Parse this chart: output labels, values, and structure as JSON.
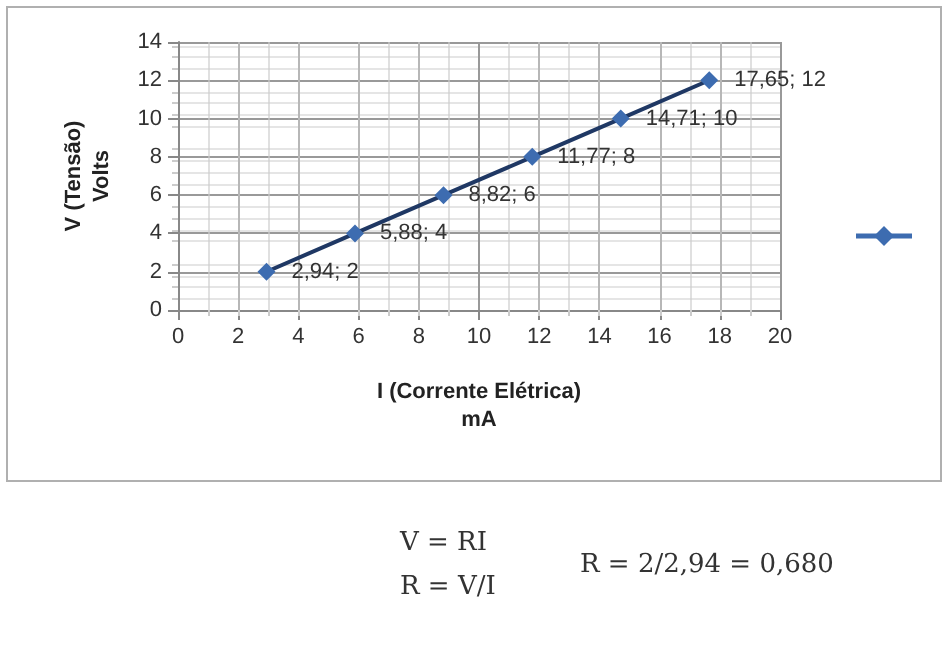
{
  "chart_data": {
    "type": "line",
    "xlabel": "I (Corrente Elétrica)\nmA",
    "ylabel": "V (Tensão)\nVolts",
    "x": [
      2.94,
      5.88,
      8.82,
      11.77,
      14.71,
      17.65
    ],
    "series": [
      {
        "color": "#3d6cb0",
        "values": [
          2,
          4,
          6,
          8,
          10,
          12
        ],
        "value_labels": [
          "2,94; 2",
          "5,88; 4",
          "8,82; 6",
          "11,77; 8",
          "14,71; 10",
          "17,65; 12"
        ]
      }
    ],
    "xlim": [
      0,
      20
    ],
    "xticks": [
      0,
      2,
      4,
      6,
      8,
      10,
      12,
      14,
      16,
      18,
      20
    ],
    "ylim": [
      0,
      14
    ],
    "yticks": [
      0,
      2,
      4,
      6,
      8,
      10,
      12,
      14
    ],
    "grid": true,
    "marker": "diamond",
    "line_style": "solid",
    "annotations": [
      "V = RI",
      "R = V/I",
      "R = 2/2,94 = 0,680"
    ]
  }
}
